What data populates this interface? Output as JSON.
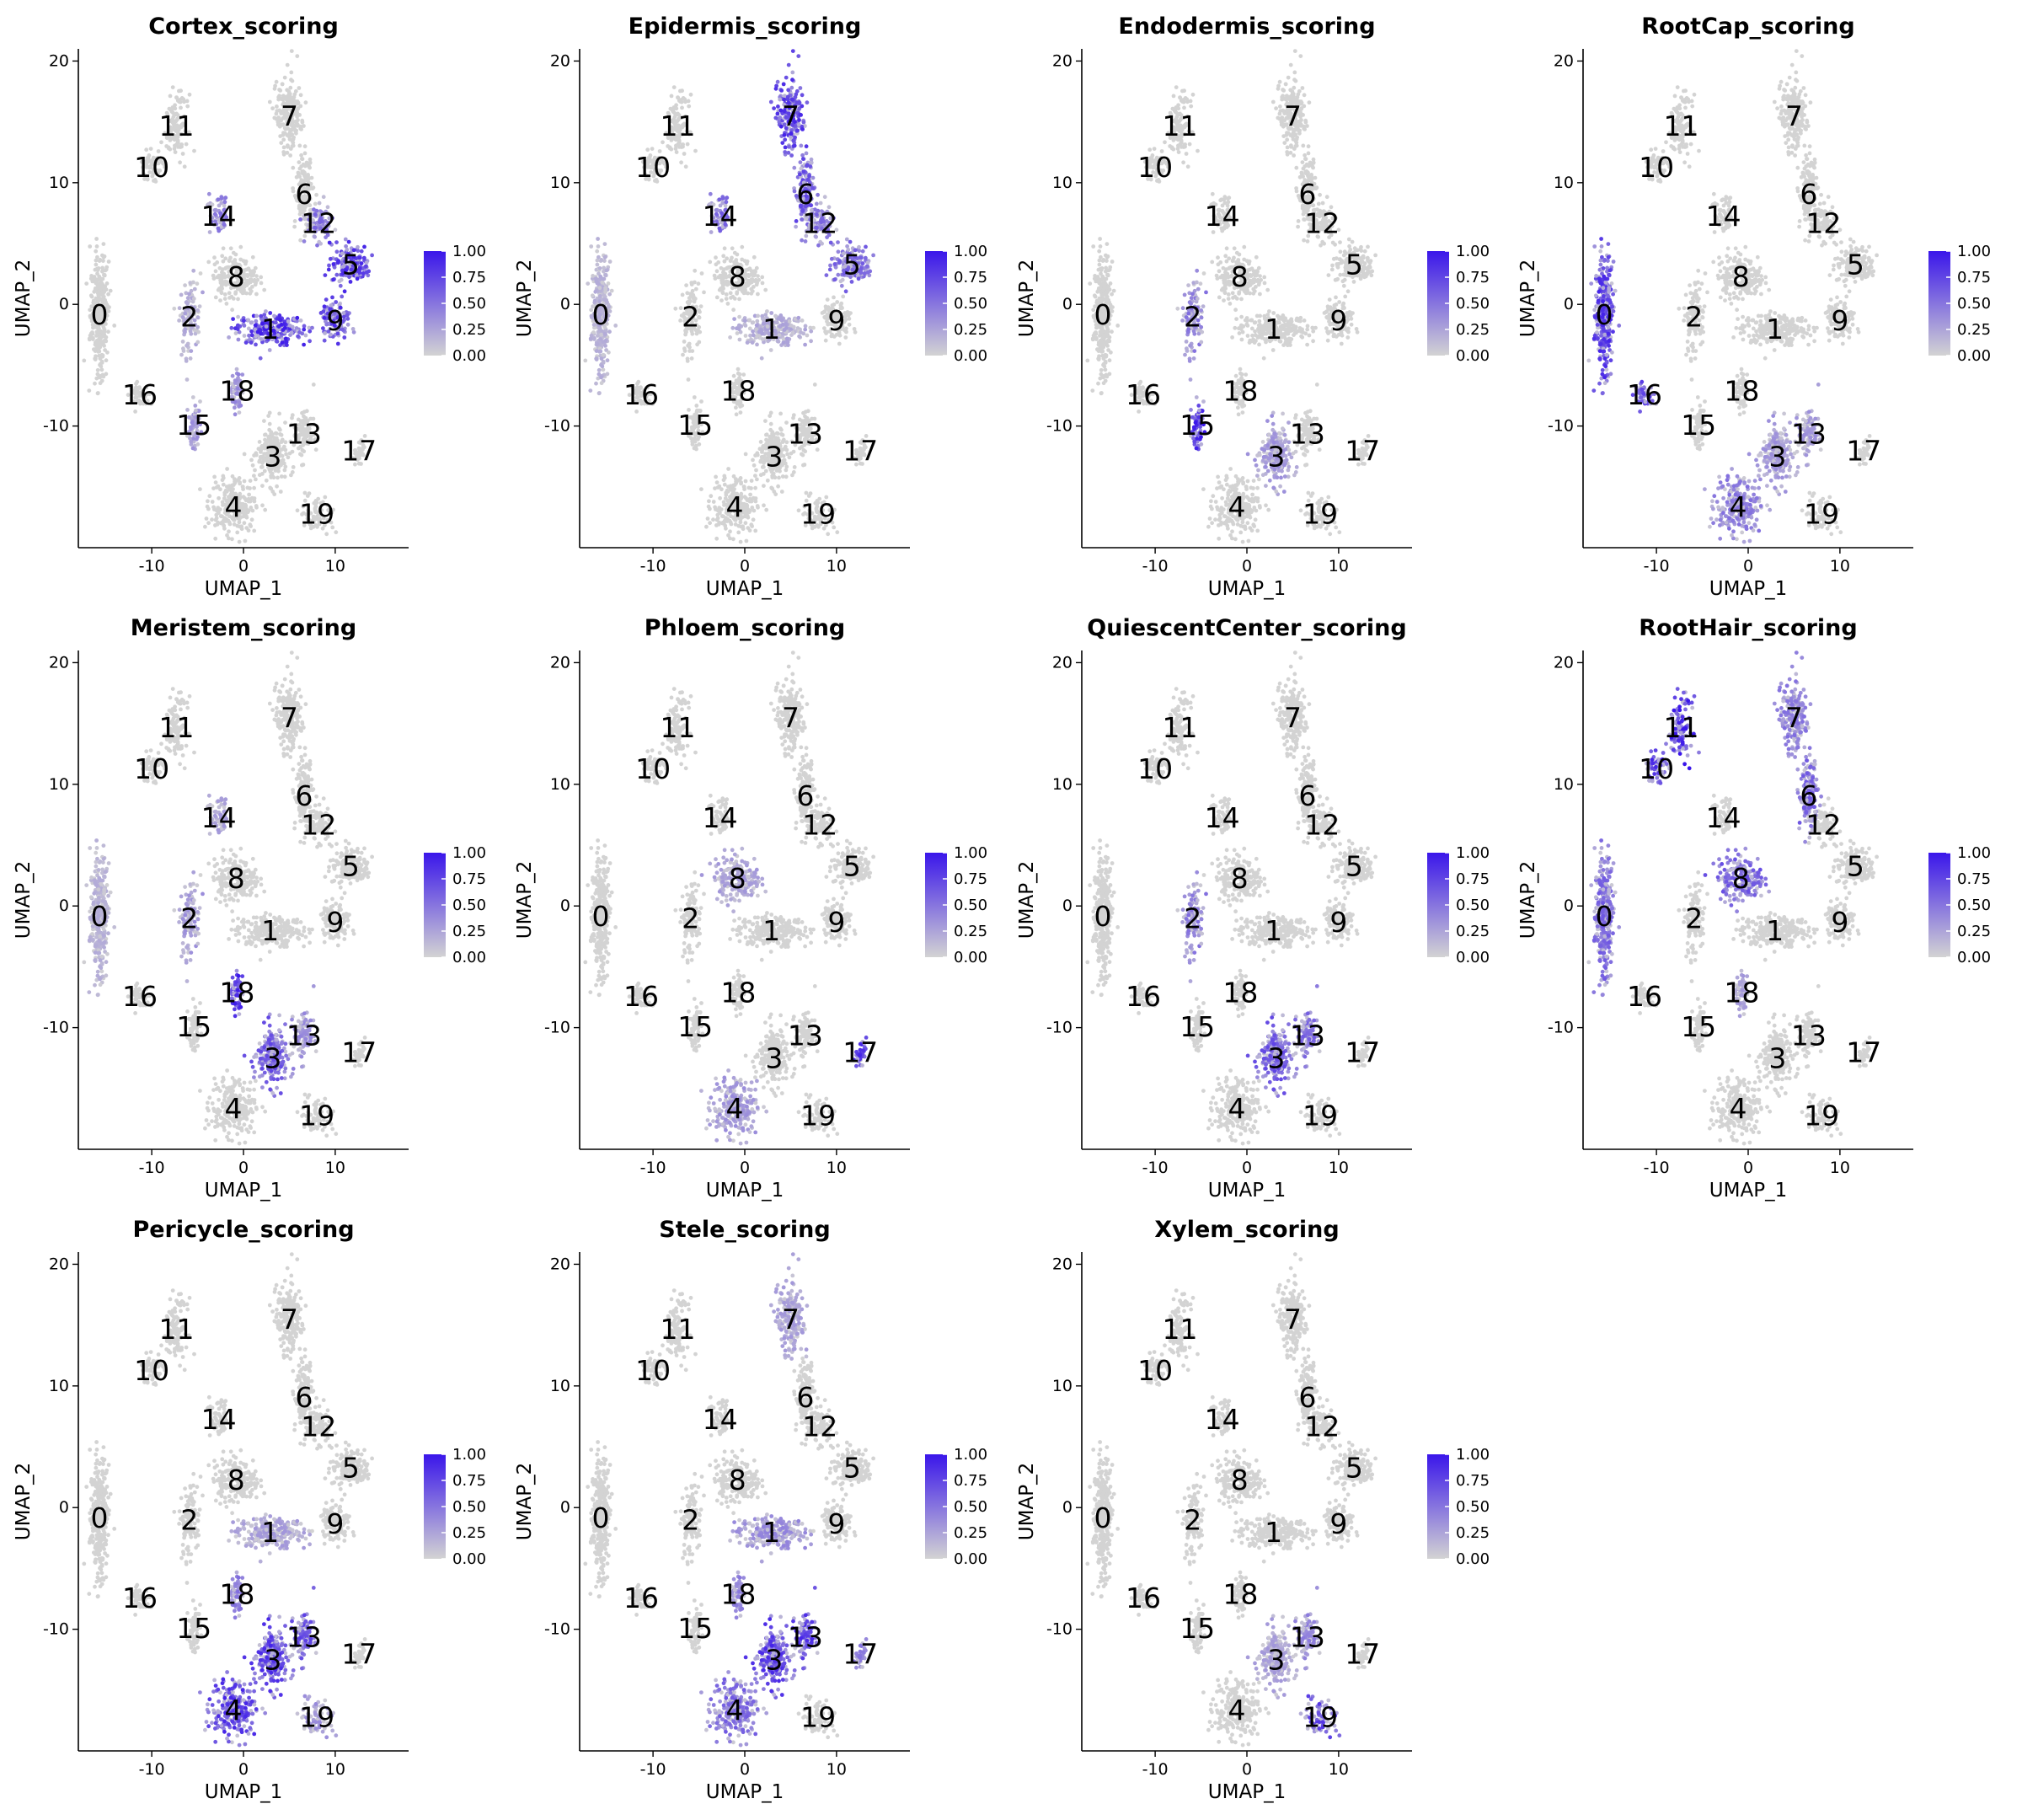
{
  "chart_data": {
    "type": "scatter",
    "layout": {
      "rows": 3,
      "cols": 4
    },
    "xlabel": "UMAP_1",
    "ylabel": "UMAP_2",
    "xlim": [
      -18,
      18
    ],
    "ylim": [
      -20,
      21
    ],
    "xticks": [
      -10,
      0,
      10
    ],
    "yticks": [
      -10,
      0,
      10,
      20
    ],
    "colorbar": {
      "min": 0,
      "max": 1,
      "ticks": [
        "0.00",
        "0.25",
        "0.50",
        "0.75",
        "1.00"
      ],
      "low_color": "#d3d3d3",
      "high_color": "#3a16ea"
    },
    "clusters": [
      {
        "label": "0",
        "x": -15.7,
        "y": -0.8
      },
      {
        "label": "1",
        "x": 2.9,
        "y": -2.0
      },
      {
        "label": "2",
        "x": -5.9,
        "y": -1.0
      },
      {
        "label": "3",
        "x": 3.2,
        "y": -12.5
      },
      {
        "label": "4",
        "x": -1.1,
        "y": -16.6
      },
      {
        "label": "5",
        "x": 11.7,
        "y": 3.3
      },
      {
        "label": "6",
        "x": 6.6,
        "y": 9.1
      },
      {
        "label": "7",
        "x": 5.0,
        "y": 15.5
      },
      {
        "label": "8",
        "x": -0.8,
        "y": 2.3
      },
      {
        "label": "9",
        "x": 10.0,
        "y": -1.3
      },
      {
        "label": "10",
        "x": -10.0,
        "y": 11.3
      },
      {
        "label": "11",
        "x": -7.3,
        "y": 14.7
      },
      {
        "label": "12",
        "x": 8.2,
        "y": 6.7
      },
      {
        "label": "13",
        "x": 6.6,
        "y": -10.6
      },
      {
        "label": "14",
        "x": -2.7,
        "y": 7.3
      },
      {
        "label": "15",
        "x": -5.4,
        "y": -9.9
      },
      {
        "label": "16",
        "x": -11.3,
        "y": -7.4
      },
      {
        "label": "17",
        "x": 12.6,
        "y": -12.0
      },
      {
        "label": "18",
        "x": -0.7,
        "y": -7.1
      },
      {
        "label": "19",
        "x": 8.0,
        "y": -17.2
      }
    ],
    "panels": [
      {
        "title": "Cortex_scoring",
        "high": {
          "1": 0.9,
          "9": 0.85,
          "5": 0.85,
          "12": 0.55,
          "14": 0.5,
          "18": 0.4,
          "15": 0.35,
          "2": 0.25
        }
      },
      {
        "title": "Epidermis_scoring",
        "high": {
          "7": 0.85,
          "6": 0.7,
          "12": 0.55,
          "5": 0.6,
          "14": 0.6,
          "0": 0.2,
          "1": 0.25
        }
      },
      {
        "title": "Endodermis_scoring",
        "high": {
          "15": 0.95,
          "2": 0.5,
          "3": 0.35
        }
      },
      {
        "title": "RootCap_scoring",
        "high": {
          "0": 0.85,
          "16": 0.75,
          "4": 0.5,
          "13": 0.35,
          "3": 0.35
        }
      },
      {
        "title": "Meristem_scoring",
        "high": {
          "18": 0.9,
          "3": 0.7,
          "13": 0.4,
          "2": 0.35,
          "14": 0.3,
          "0": 0.2
        }
      },
      {
        "title": "Phloem_scoring",
        "high": {
          "17": 0.9,
          "4": 0.35,
          "8": 0.3
        }
      },
      {
        "title": "QuiescentCenter_scoring",
        "high": {
          "3": 0.7,
          "13": 0.6,
          "2": 0.5
        }
      },
      {
        "title": "RootHair_scoring",
        "high": {
          "11": 0.95,
          "10": 0.9,
          "6": 0.6,
          "7": 0.5,
          "8": 0.65,
          "0": 0.6,
          "18": 0.3
        }
      },
      {
        "title": "Pericycle_scoring",
        "high": {
          "4": 0.85,
          "3": 0.85,
          "13": 0.75,
          "18": 0.5,
          "19": 0.35,
          "1": 0.3
        }
      },
      {
        "title": "Stele_scoring",
        "high": {
          "3": 0.85,
          "13": 0.85,
          "4": 0.6,
          "17": 0.5,
          "18": 0.45,
          "1": 0.4,
          "7": 0.3
        }
      },
      {
        "title": "Xylem_scoring",
        "high": {
          "19": 0.75,
          "13": 0.45,
          "3": 0.3
        }
      }
    ]
  }
}
